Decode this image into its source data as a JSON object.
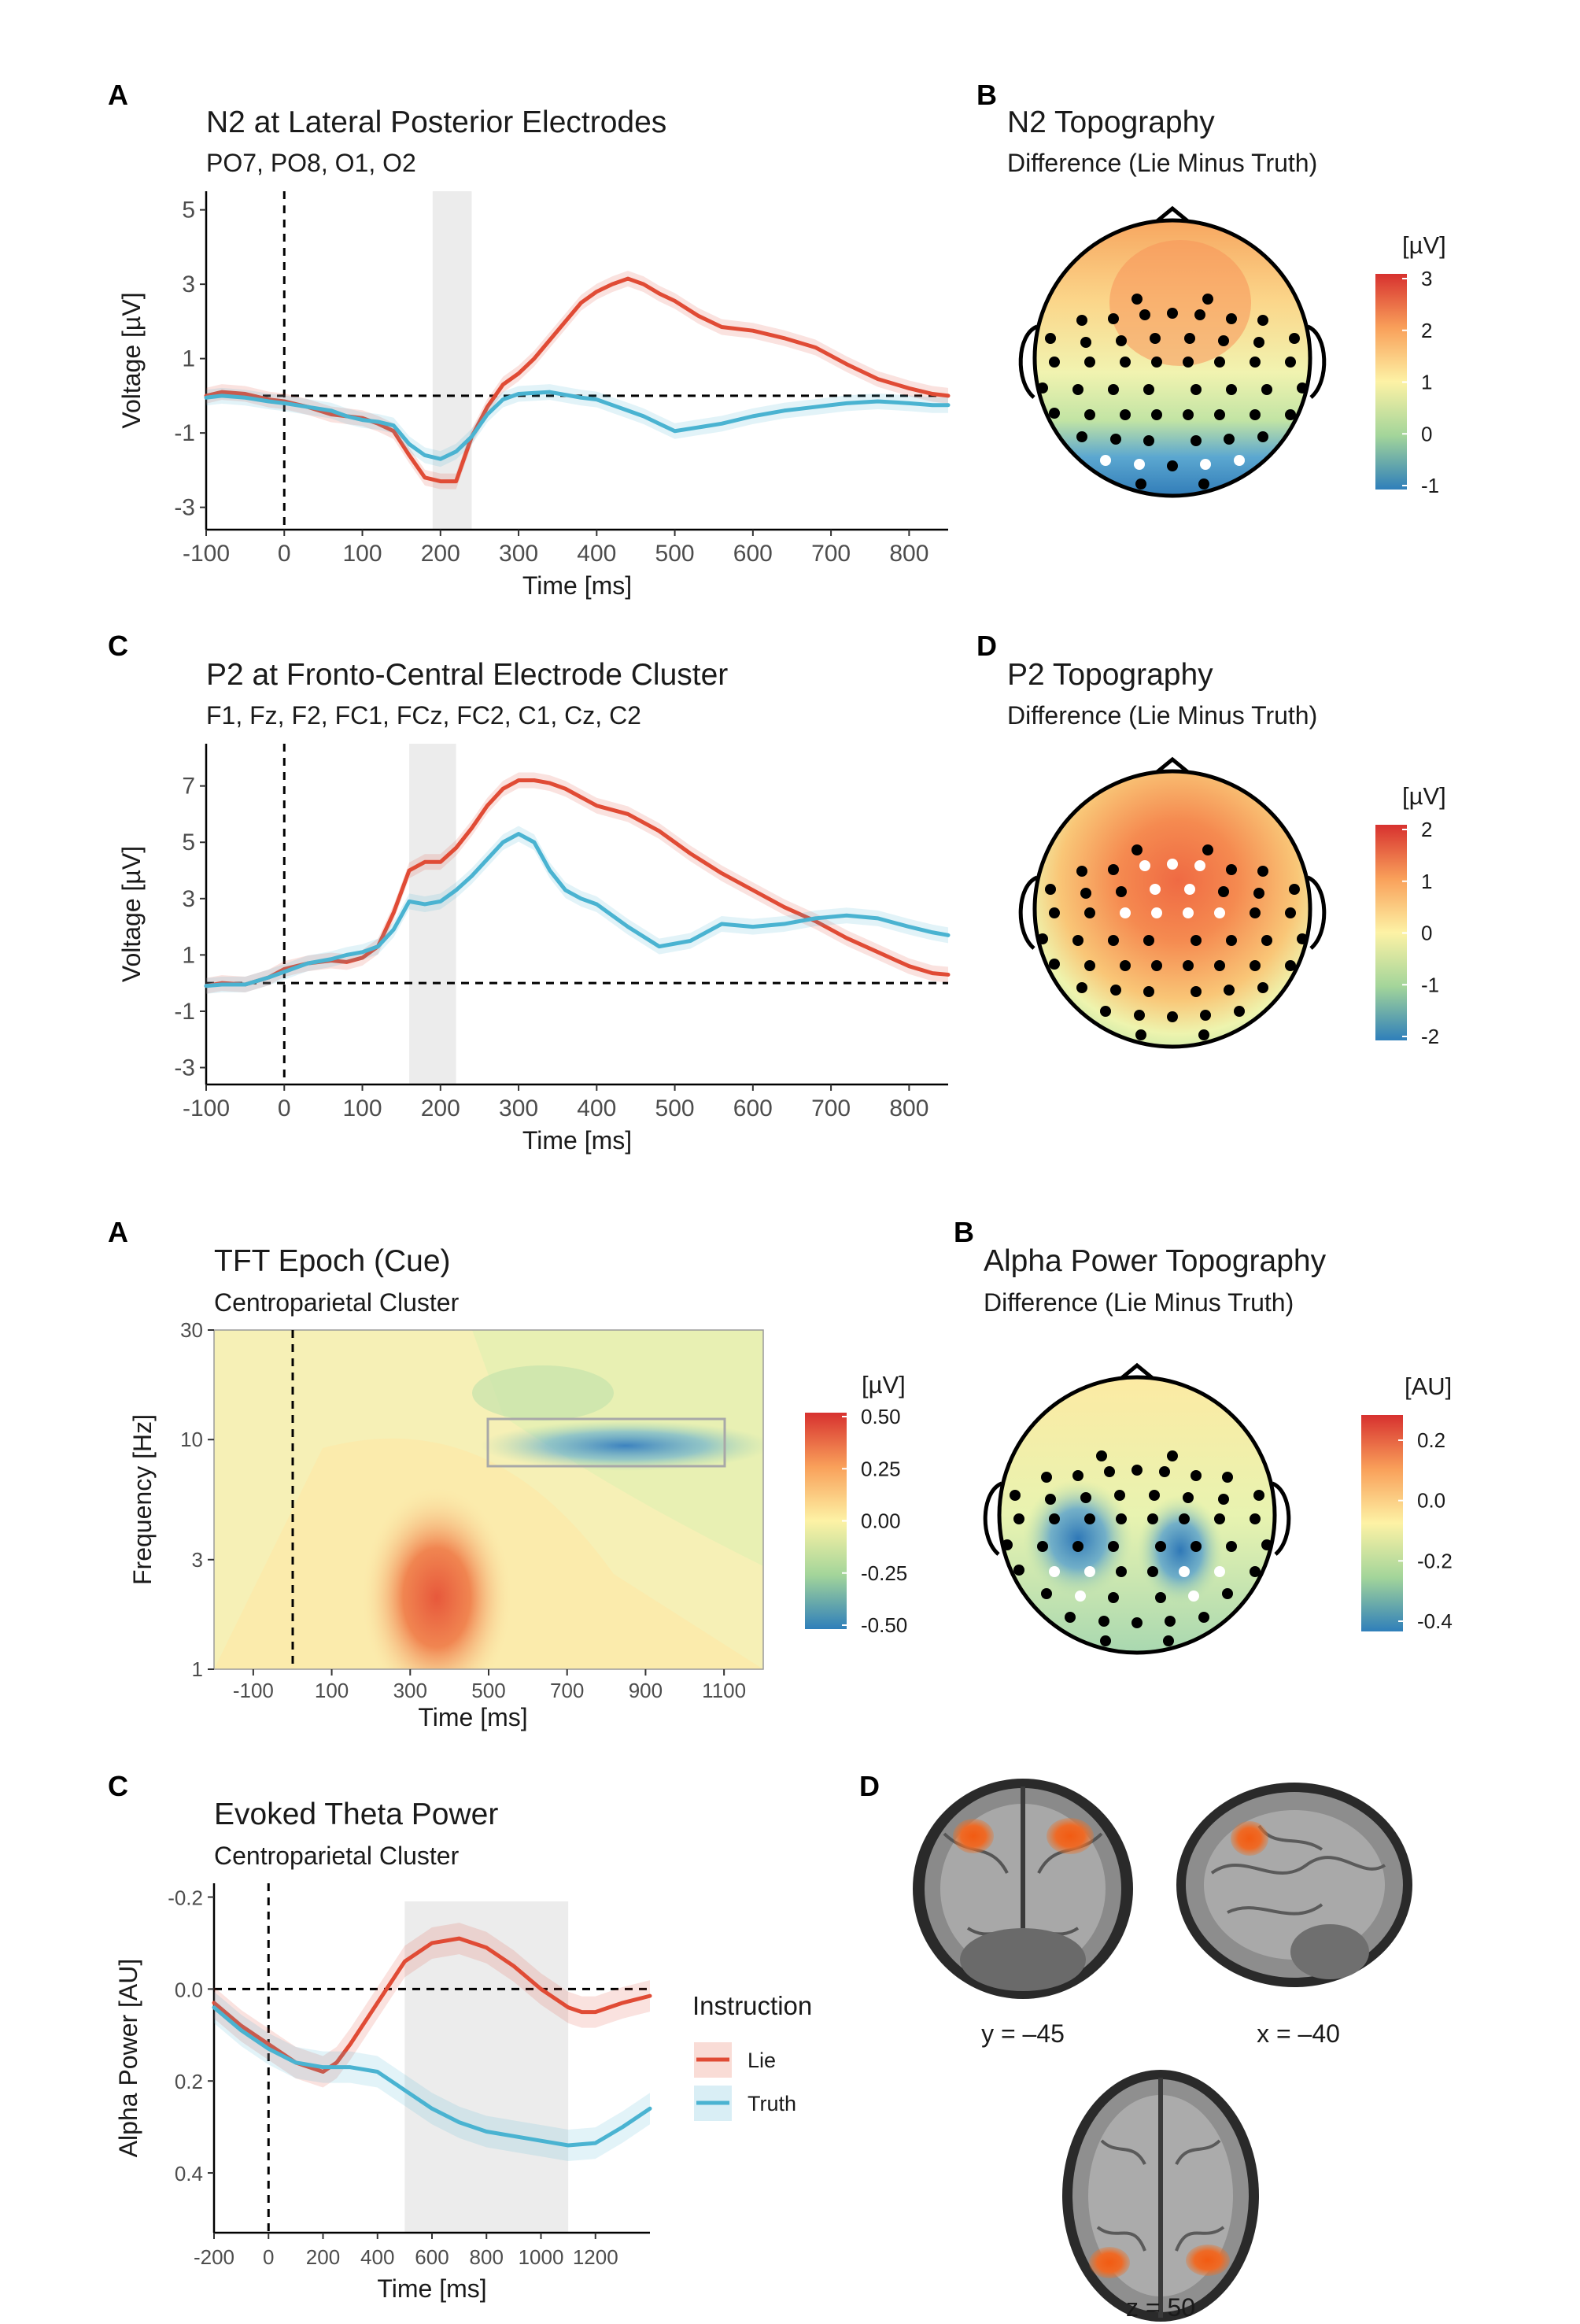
{
  "colors": {
    "lie": "#e04b35",
    "truth": "#4ab3d1",
    "highlight": "#ececec"
  },
  "chart_data": [
    {
      "id": "A1",
      "type": "line",
      "panel": "A",
      "title": "N2 at Lateral Posterior Electrodes",
      "subtitle": "PO7, PO8, O1, O2",
      "xlabel": "Time [ms]",
      "ylabel": "Voltage [µV]",
      "xlim": [
        -100,
        850
      ],
      "ylim": [
        5.5,
        -3.6
      ],
      "y_reversed": true,
      "xticks": [
        -100,
        0,
        100,
        200,
        300,
        400,
        500,
        600,
        700,
        800
      ],
      "yticks": [
        -3,
        -1,
        1,
        3,
        5
      ],
      "highlight": [
        190,
        240
      ],
      "series": [
        {
          "name": "Lie",
          "color": "#e04b35",
          "x": [
            -100,
            -80,
            -50,
            -20,
            0,
            30,
            60,
            80,
            100,
            120,
            140,
            160,
            180,
            200,
            220,
            240,
            260,
            280,
            300,
            320,
            340,
            360,
            380,
            400,
            420,
            440,
            460,
            480,
            500,
            530,
            560,
            600,
            640,
            680,
            720,
            760,
            800,
            830,
            850
          ],
          "y": [
            0.0,
            0.1,
            0.05,
            -0.1,
            -0.15,
            -0.3,
            -0.5,
            -0.55,
            -0.6,
            -0.75,
            -0.95,
            -1.6,
            -2.2,
            -2.3,
            -2.3,
            -1.1,
            -0.3,
            0.3,
            0.6,
            1.0,
            1.5,
            2.0,
            2.5,
            2.8,
            3.0,
            3.15,
            3.0,
            2.75,
            2.55,
            2.15,
            1.85,
            1.75,
            1.55,
            1.3,
            0.85,
            0.45,
            0.2,
            0.05,
            0.0
          ]
        },
        {
          "name": "Truth",
          "color": "#4ab3d1",
          "x": [
            -100,
            -80,
            -50,
            -20,
            0,
            30,
            60,
            80,
            100,
            120,
            140,
            160,
            180,
            200,
            220,
            240,
            260,
            280,
            300,
            340,
            380,
            400,
            420,
            440,
            460,
            480,
            500,
            530,
            560,
            600,
            640,
            680,
            720,
            760,
            800,
            830,
            850
          ],
          "y": [
            -0.05,
            0.0,
            -0.05,
            -0.15,
            -0.2,
            -0.3,
            -0.4,
            -0.55,
            -0.65,
            -0.7,
            -0.8,
            -1.3,
            -1.6,
            -1.7,
            -1.5,
            -1.1,
            -0.5,
            -0.1,
            0.05,
            0.1,
            -0.05,
            -0.1,
            -0.25,
            -0.4,
            -0.55,
            -0.75,
            -0.95,
            -0.85,
            -0.75,
            -0.55,
            -0.4,
            -0.3,
            -0.2,
            -0.15,
            -0.2,
            -0.25,
            -0.25
          ]
        }
      ]
    },
    {
      "id": "B1",
      "type": "heatmap",
      "panel": "B",
      "title": "N2 Topography",
      "subtitle": "Difference (Lie Minus Truth)",
      "colorbar": {
        "title": "[µV]",
        "range": [
          -1,
          3
        ],
        "ticks": [
          "3",
          "2",
          "1",
          "0",
          "-1"
        ]
      },
      "description_values": {
        "frontal": 2.0,
        "central": 1.0,
        "posterior": -1.0
      }
    },
    {
      "id": "C1",
      "type": "line",
      "panel": "C",
      "title": "P2 at Fronto-Central Electrode Cluster",
      "subtitle": "F1, Fz, F2, FC1, FCz, FC2, C1, Cz, C2",
      "xlabel": "Time [ms]",
      "ylabel": "Voltage [µV]",
      "xlim": [
        -100,
        850
      ],
      "ylim": [
        8.5,
        -3.6
      ],
      "y_reversed": true,
      "xticks": [
        -100,
        0,
        100,
        200,
        300,
        400,
        500,
        600,
        700,
        800
      ],
      "yticks": [
        -3,
        -1,
        1,
        3,
        5,
        7
      ],
      "highlight": [
        160,
        220
      ],
      "series": [
        {
          "name": "Lie",
          "color": "#e04b35",
          "x": [
            -100,
            -80,
            -50,
            -20,
            0,
            30,
            60,
            80,
            100,
            120,
            140,
            160,
            180,
            200,
            220,
            240,
            260,
            280,
            300,
            320,
            340,
            360,
            380,
            400,
            440,
            480,
            520,
            560,
            600,
            640,
            680,
            720,
            760,
            800,
            830,
            850
          ],
          "y": [
            -0.1,
            0.0,
            -0.05,
            0.2,
            0.5,
            0.7,
            0.8,
            0.75,
            0.9,
            1.3,
            2.5,
            4.0,
            4.3,
            4.3,
            4.8,
            5.5,
            6.3,
            6.9,
            7.2,
            7.2,
            7.1,
            6.9,
            6.6,
            6.3,
            6.0,
            5.4,
            4.6,
            3.9,
            3.3,
            2.7,
            2.2,
            1.6,
            1.1,
            0.6,
            0.35,
            0.3
          ]
        },
        {
          "name": "Truth",
          "color": "#4ab3d1",
          "x": [
            -100,
            -80,
            -50,
            -20,
            0,
            30,
            60,
            80,
            100,
            120,
            140,
            160,
            180,
            200,
            220,
            240,
            260,
            280,
            300,
            320,
            340,
            360,
            380,
            400,
            440,
            480,
            520,
            560,
            600,
            640,
            680,
            720,
            760,
            800,
            830,
            850
          ],
          "y": [
            -0.1,
            -0.05,
            -0.05,
            0.2,
            0.4,
            0.7,
            0.85,
            1.0,
            1.1,
            1.3,
            1.9,
            2.9,
            2.8,
            2.9,
            3.3,
            3.8,
            4.4,
            5.0,
            5.3,
            5.0,
            4.0,
            3.3,
            3.0,
            2.8,
            2.0,
            1.3,
            1.5,
            2.1,
            2.0,
            2.1,
            2.3,
            2.4,
            2.3,
            2.0,
            1.8,
            1.7
          ]
        }
      ]
    },
    {
      "id": "D1",
      "type": "heatmap",
      "panel": "D",
      "title": "P2 Topography",
      "subtitle": "Difference (Lie Minus Truth)",
      "colorbar": {
        "title": "[µV]",
        "range": [
          -2,
          2
        ],
        "ticks": [
          "2",
          "1",
          "0",
          "-1",
          "-2"
        ]
      },
      "description_values": {
        "frontocentral": 1.5,
        "posterior": -0.5
      }
    },
    {
      "id": "A2",
      "type": "heatmap",
      "panel": "A",
      "title": "TFT Epoch (Cue)",
      "subtitle": "Centroparietal Cluster",
      "xlabel": "Time [ms]",
      "ylabel": "Frequency [Hz]",
      "xlim": [
        -200,
        1200
      ],
      "ylim": [
        1,
        30
      ],
      "y_log": true,
      "xticks": [
        -100,
        100,
        300,
        500,
        700,
        900,
        1100
      ],
      "yticks": [
        1,
        3,
        10,
        30
      ],
      "roi": {
        "x": [
          500,
          1100
        ],
        "y": [
          8,
          13
        ]
      },
      "colorbar": {
        "title": "[µV]",
        "range": [
          -0.5,
          0.5
        ],
        "ticks": [
          "0.50",
          "0.25",
          "0.00",
          "-0.25",
          "-0.50"
        ]
      },
      "blobs": [
        {
          "label": "theta increase",
          "x": 350,
          "y": 2.5,
          "value": 0.35
        },
        {
          "label": "alpha decrease",
          "x": 780,
          "y": 10,
          "value": -0.5
        }
      ]
    },
    {
      "id": "B2",
      "type": "heatmap",
      "panel": "B",
      "title": "Alpha Power Topography",
      "subtitle": "Difference (Lie Minus Truth)",
      "colorbar": {
        "title": "[AU]",
        "range": [
          -0.4,
          0.3
        ],
        "ticks": [
          "0.2",
          "0.0",
          "-0.2",
          "-0.4"
        ]
      }
    },
    {
      "id": "C2",
      "type": "line",
      "panel": "C",
      "title": "Evoked Theta Power",
      "subtitle": "Centroparietal Cluster",
      "xlabel": "Time [ms]",
      "ylabel": "Alpha Power [AU]",
      "xlim": [
        -200,
        1400
      ],
      "ylim": [
        -0.23,
        0.53
      ],
      "xticks": [
        -200,
        0,
        200,
        400,
        600,
        800,
        1000,
        1200
      ],
      "yticks": [
        -0.2,
        0.0,
        0.2,
        0.4
      ],
      "highlight": [
        500,
        1100
      ],
      "legend": {
        "title": "Instruction",
        "position": "right"
      },
      "series": [
        {
          "name": "Lie",
          "color": "#e04b35",
          "x": [
            -200,
            -100,
            0,
            100,
            200,
            250,
            300,
            400,
            500,
            600,
            700,
            800,
            900,
            1000,
            1100,
            1150,
            1200,
            1300,
            1400
          ],
          "y": [
            0.03,
            0.08,
            0.12,
            0.16,
            0.18,
            0.16,
            0.12,
            0.03,
            -0.06,
            -0.1,
            -0.11,
            -0.09,
            -0.05,
            0.0,
            0.04,
            0.05,
            0.05,
            0.03,
            0.015
          ]
        },
        {
          "name": "Truth",
          "color": "#4ab3d1",
          "x": [
            -200,
            -100,
            0,
            100,
            200,
            300,
            400,
            500,
            600,
            700,
            800,
            900,
            1000,
            1100,
            1200,
            1300,
            1400
          ],
          "y": [
            0.04,
            0.09,
            0.13,
            0.16,
            0.17,
            0.17,
            0.18,
            0.22,
            0.26,
            0.29,
            0.31,
            0.32,
            0.33,
            0.34,
            0.335,
            0.3,
            0.26
          ]
        }
      ]
    }
  ],
  "panels": {
    "p1": {
      "letter": "A",
      "title": "N2 at Lateral Posterior Electrodes",
      "subtitle": "PO7, PO8, O1, O2"
    },
    "p2": {
      "letter": "B",
      "title": "N2 Topography",
      "subtitle": "Difference (Lie Minus Truth)"
    },
    "p3": {
      "letter": "C",
      "title": "P2 at Fronto-Central Electrode Cluster",
      "subtitle": "F1, Fz, F2, FC1, FCz, FC2, C1, Cz, C2"
    },
    "p4": {
      "letter": "D",
      "title": "P2 Topography",
      "subtitle": "Difference (Lie Minus Truth)"
    },
    "p5": {
      "letter": "A",
      "title": "TFT Epoch (Cue)",
      "subtitle": "Centroparietal Cluster"
    },
    "p6": {
      "letter": "B",
      "title": "Alpha Power Topography",
      "subtitle": "Difference (Lie Minus Truth)"
    },
    "p7": {
      "letter": "C",
      "title": "Evoked Theta Power",
      "subtitle": "Centroparietal Cluster"
    },
    "p8": {
      "letter": "D"
    }
  },
  "legend": {
    "title": "Instruction",
    "items": [
      "Lie",
      "Truth"
    ]
  },
  "brain": {
    "coronal": "y = –45",
    "sagittal": "x = –40",
    "axial": "z = 50"
  }
}
